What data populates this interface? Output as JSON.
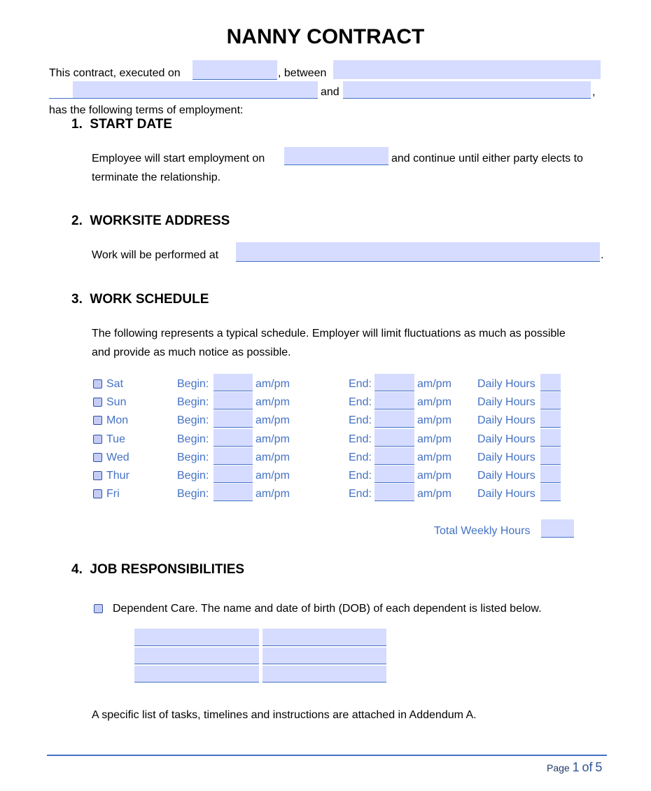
{
  "title": "NANNY CONTRACT",
  "intro": {
    "p1": "This contract, executed on",
    "p2": ", between",
    "p3": "and",
    "p4": ",",
    "p5": "has the following terms of employment:"
  },
  "sections": [
    {
      "num": "1.",
      "title": "START DATE",
      "text1": "Employee will start employment on",
      "text2": "and continue until either party elects to",
      "text3": "terminate the relationship."
    },
    {
      "num": "2.",
      "title": "WORKSITE ADDRESS",
      "text1": "Work will be performed at",
      "text2": "."
    },
    {
      "num": "3.",
      "title": "WORK SCHEDULE",
      "text1": "The following represents a typical schedule. Employer will limit fluctuations as much as possible",
      "text2": "and provide as much notice as possible."
    },
    {
      "num": "4.",
      "title": "JOB RESPONSIBILITIES",
      "text1": "Dependent Care. The name and date of birth (DOB) of each dependent is listed below.",
      "text2": "A specific list of tasks, timelines and instructions are attached in Addendum A."
    }
  ],
  "schedule": {
    "begin_label": "Begin:",
    "end_label": "End:",
    "ampm": "am/pm",
    "daily_label": "Daily Hours",
    "total_label": "Total Weekly Hours",
    "days": [
      "Sat",
      "Sun",
      "Mon",
      "Tue",
      "Wed",
      "Thur",
      "Fri"
    ]
  },
  "footer": {
    "page_word": "Page",
    "current": "1",
    "of_word": "of",
    "total": "5"
  },
  "colors": {
    "accent": "#4472c4",
    "field": "#d6dcff"
  }
}
